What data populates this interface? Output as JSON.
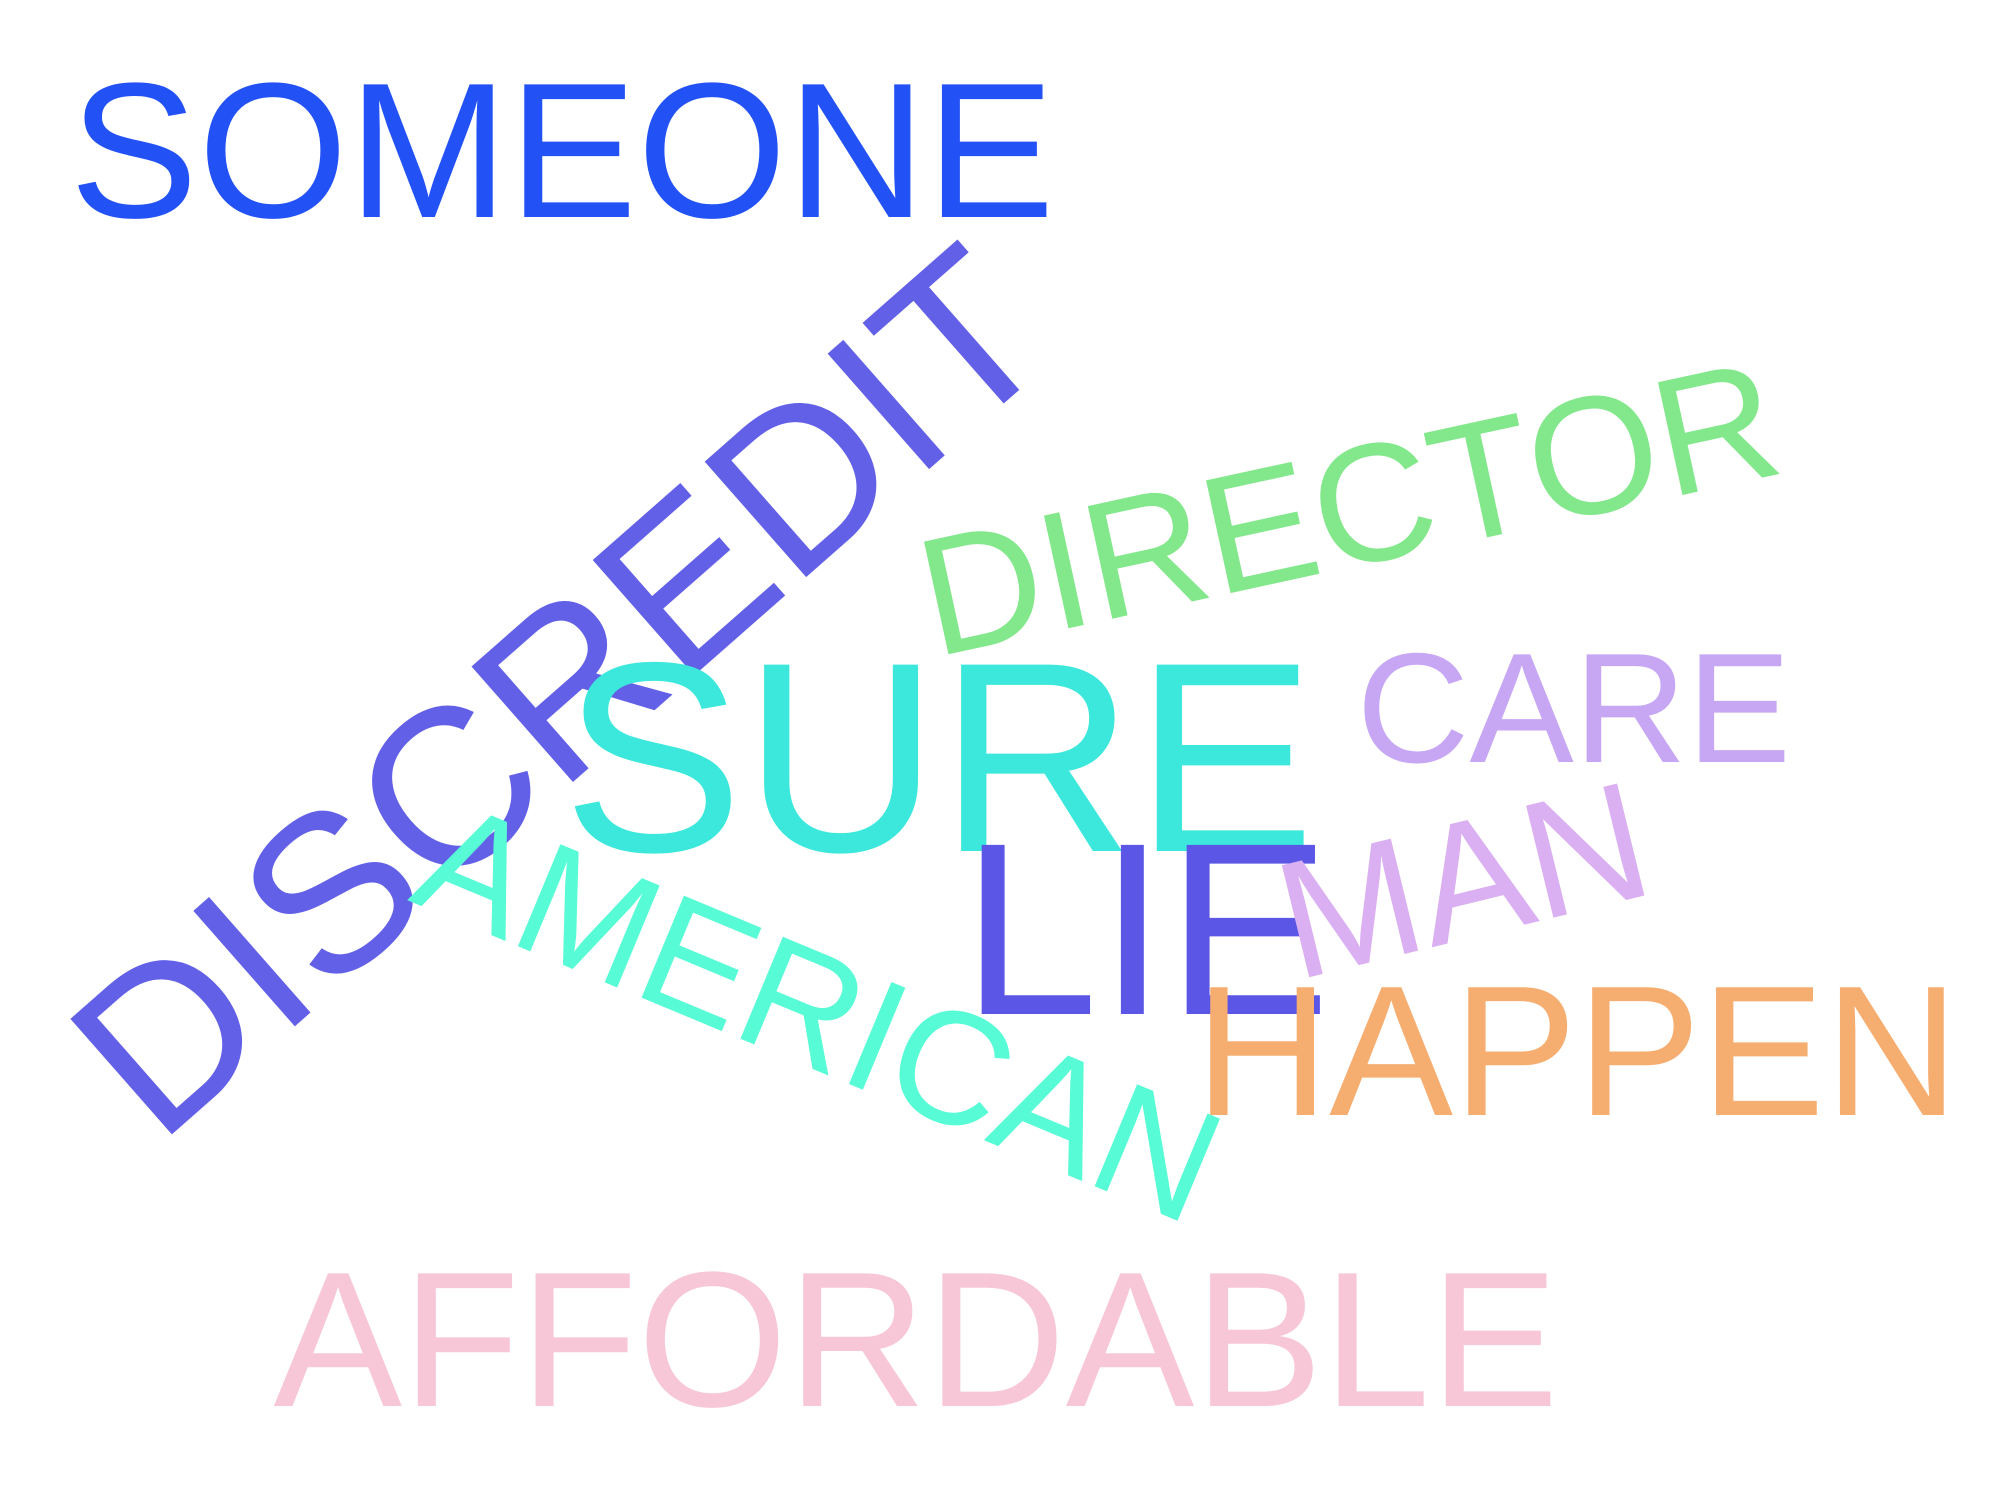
{
  "words": [
    {
      "text": "SOMEONE",
      "color": "#2251f5"
    },
    {
      "text": "DISCREDIT",
      "color": "#6360e8"
    },
    {
      "text": "DIRECTOR",
      "color": "#83e88b"
    },
    {
      "text": "SURE",
      "color": "#3ce8dc"
    },
    {
      "text": "CARE",
      "color": "#c7a7f3"
    },
    {
      "text": "AMERICAN",
      "color": "#57fbd5"
    },
    {
      "text": "LIE",
      "color": "#5b56e6"
    },
    {
      "text": "MAN",
      "color": "#dab0f2"
    },
    {
      "text": "HAPPEN",
      "color": "#f6ad70"
    },
    {
      "text": "AFFORDABLE",
      "color": "#f7c7d7"
    }
  ]
}
